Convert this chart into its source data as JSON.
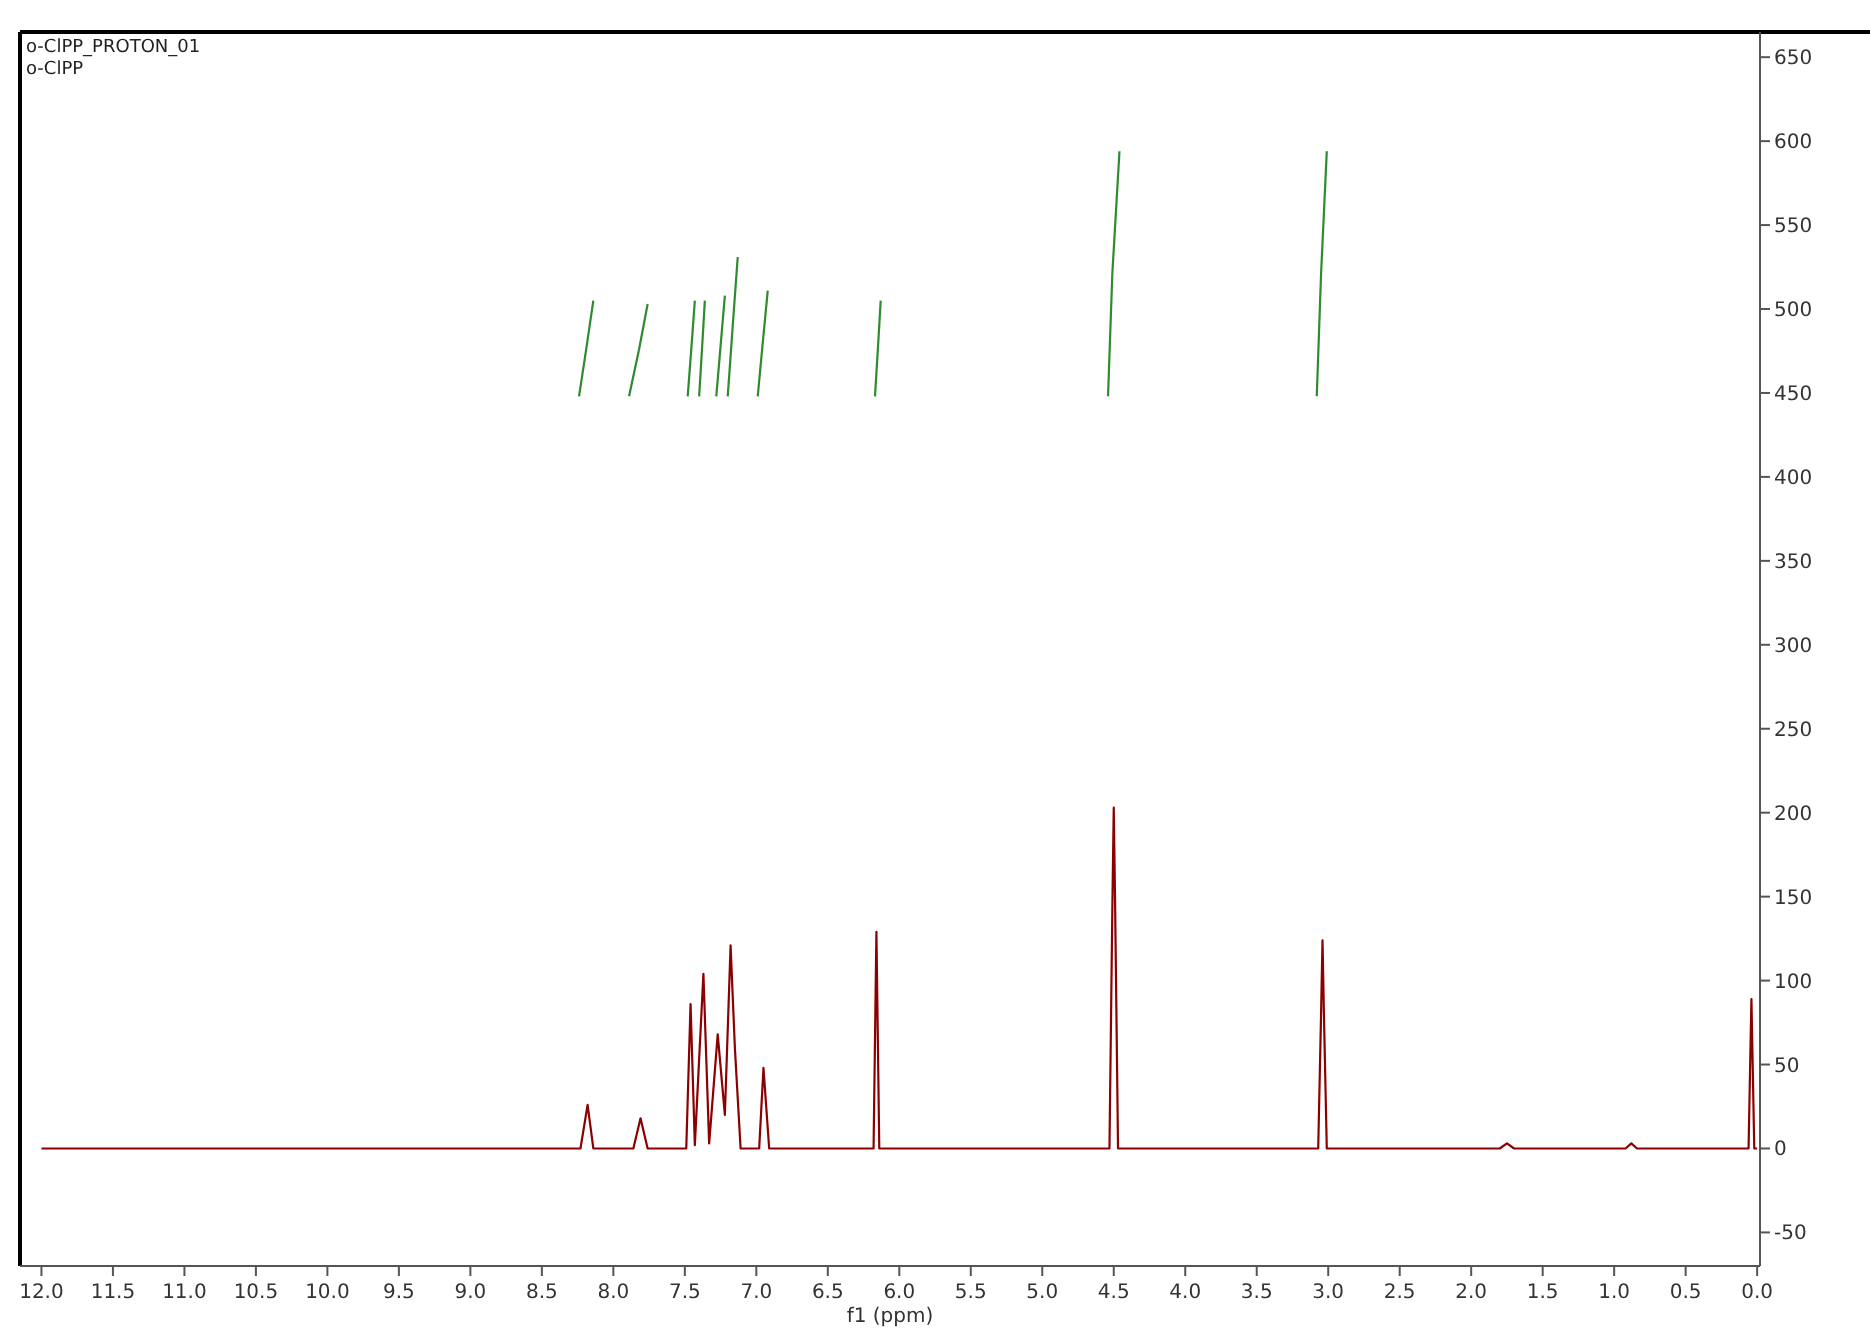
{
  "chart_data": {
    "type": "line",
    "title": "o-ClPP_PROTON_01",
    "subtitle": "o-ClPP",
    "xlabel": "f1 (ppm)",
    "xlim": [
      12.15,
      -0.02
    ],
    "ylim": [
      -70,
      665
    ],
    "xticks": [
      {
        "value": 12,
        "label": "12.0"
      },
      11.5,
      {
        "value": 11,
        "label": "11.0"
      },
      10.5,
      {
        "value": 10,
        "label": "10.0"
      },
      9.5,
      {
        "value": 9,
        "label": "9.0"
      },
      8.5,
      {
        "value": 8,
        "label": "8.0"
      },
      7.5,
      {
        "value": 7,
        "label": "7.0"
      },
      6.5,
      {
        "value": 6,
        "label": "6.0"
      },
      5.5,
      {
        "value": 5,
        "label": "5.0"
      },
      4.5,
      {
        "value": 4,
        "label": "4.0"
      },
      3.5,
      {
        "value": 3,
        "label": "3.0"
      },
      2.5,
      {
        "value": 2,
        "label": "2.0"
      },
      1.5,
      {
        "value": 1,
        "label": "1.0"
      },
      0.5,
      {
        "value": 0,
        "label": "0.0"
      }
    ],
    "yticks": [
      -50,
      0,
      50,
      100,
      150,
      200,
      250,
      300,
      350,
      400,
      450,
      500,
      550,
      600,
      650
    ],
    "grid": false,
    "marker": "none",
    "line_style": "solid",
    "series": [
      {
        "color": "#8b0000",
        "x": [
          12.0,
          8.23,
          8.18,
          8.14,
          7.86,
          7.81,
          7.76,
          7.49,
          7.46,
          7.43,
          7.37,
          7.33,
          7.27,
          7.22,
          7.18,
          7.15,
          7.11,
          6.98,
          6.95,
          6.91,
          6.18,
          6.16,
          6.14,
          4.53,
          4.51,
          4.5,
          4.49,
          4.47,
          3.07,
          3.05,
          3.04,
          3.03,
          3.01,
          1.8,
          1.75,
          1.7,
          0.92,
          0.88,
          0.84,
          0.06,
          0.04,
          0.02,
          0
        ],
        "values": [
          0,
          0,
          26,
          0,
          0,
          18,
          0,
          0,
          86,
          2,
          104,
          3,
          68,
          20,
          121,
          60,
          0,
          0,
          48,
          0,
          0,
          129,
          0,
          0,
          142,
          203,
          142,
          0,
          0,
          80,
          124,
          80,
          0,
          0,
          3,
          0,
          0,
          3,
          0,
          0,
          89,
          0,
          0
        ]
      },
      {
        "color": "#2e8b2e",
        "x": [
          8.24,
          8.19,
          8.14
        ],
        "values": [
          448,
          476,
          505
        ]
      },
      {
        "color": "#2e8b2e",
        "x": [
          7.89,
          7.82,
          7.76
        ],
        "values": [
          448,
          476,
          503
        ]
      },
      {
        "color": "#2e8b2e",
        "x": [
          7.48,
          7.455,
          7.43
        ],
        "values": [
          448,
          476,
          505
        ]
      },
      {
        "color": "#2e8b2e",
        "x": [
          7.4,
          7.38,
          7.36
        ],
        "values": [
          448,
          476,
          505
        ]
      },
      {
        "color": "#2e8b2e",
        "x": [
          7.28,
          7.25,
          7.22
        ],
        "values": [
          448,
          478,
          508
        ]
      },
      {
        "color": "#2e8b2e",
        "x": [
          7.2,
          7.165,
          7.13
        ],
        "values": [
          448,
          490,
          531
        ]
      },
      {
        "color": "#2e8b2e",
        "x": [
          6.99,
          6.955,
          6.92
        ],
        "values": [
          448,
          480,
          511
        ]
      },
      {
        "color": "#2e8b2e",
        "x": [
          6.17,
          6.15,
          6.13
        ],
        "values": [
          448,
          476,
          505
        ]
      },
      {
        "color": "#2e8b2e",
        "x": [
          4.54,
          4.51,
          4.46
        ],
        "values": [
          448,
          521,
          594
        ]
      },
      {
        "color": "#2e8b2e",
        "x": [
          3.08,
          3.05,
          3.01
        ],
        "values": [
          448,
          521,
          594
        ]
      }
    ]
  }
}
